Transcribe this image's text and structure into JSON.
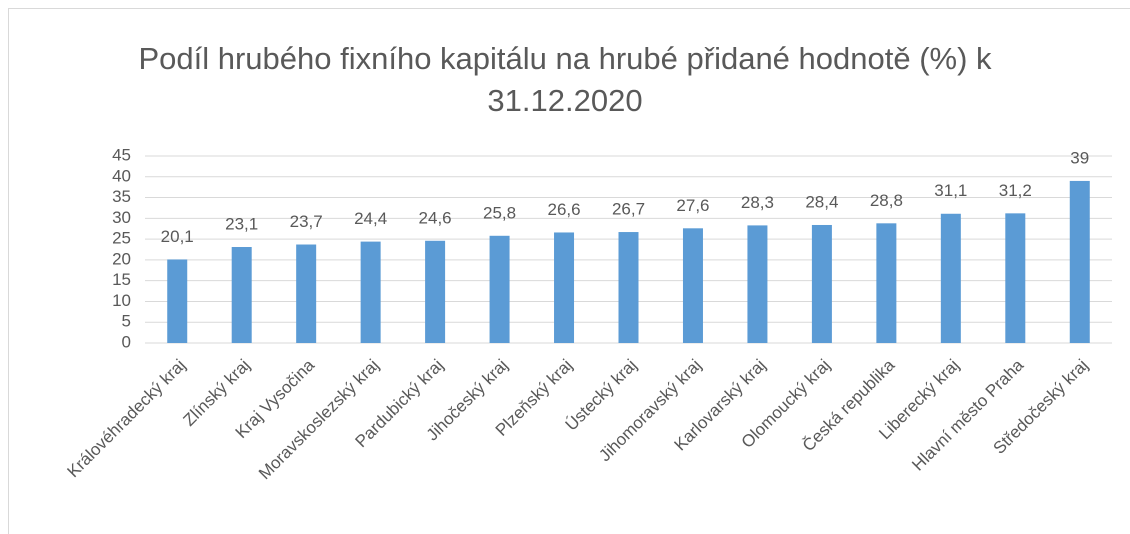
{
  "chart_data": {
    "type": "bar",
    "title": "Podíl hrubého fixního kapitálu na hrubé přidané hodnotě (%) k 31.12.2020",
    "categories": [
      "Královéhradecký kraj",
      "Zlínský kraj",
      "Kraj Vysočina",
      "Moravskoslezský kraj",
      "Pardubický kraj",
      "Jihočeský kraj",
      "Plzeňský kraj",
      "Ústecký kraj",
      "Jihomoravský kraj",
      "Karlovarský kraj",
      "Olomoucký kraj",
      "Česká republika",
      "Liberecký kraj",
      "Hlavní město Praha",
      "Středočeský kraj"
    ],
    "values": [
      20.1,
      23.1,
      23.7,
      24.4,
      24.6,
      25.8,
      26.6,
      26.7,
      27.6,
      28.3,
      28.4,
      28.8,
      31.1,
      31.2,
      39
    ],
    "value_labels": [
      "20,1",
      "23,1",
      "23,7",
      "24,4",
      "24,6",
      "25,8",
      "26,6",
      "26,7",
      "27,6",
      "28,3",
      "28,4",
      "28,8",
      "31,1",
      "31,2",
      "39"
    ],
    "color": "#5b9bd5",
    "ylim": [
      0,
      45
    ],
    "yticks": [
      0,
      5,
      10,
      15,
      20,
      25,
      30,
      35,
      40,
      45
    ],
    "grid": true
  }
}
